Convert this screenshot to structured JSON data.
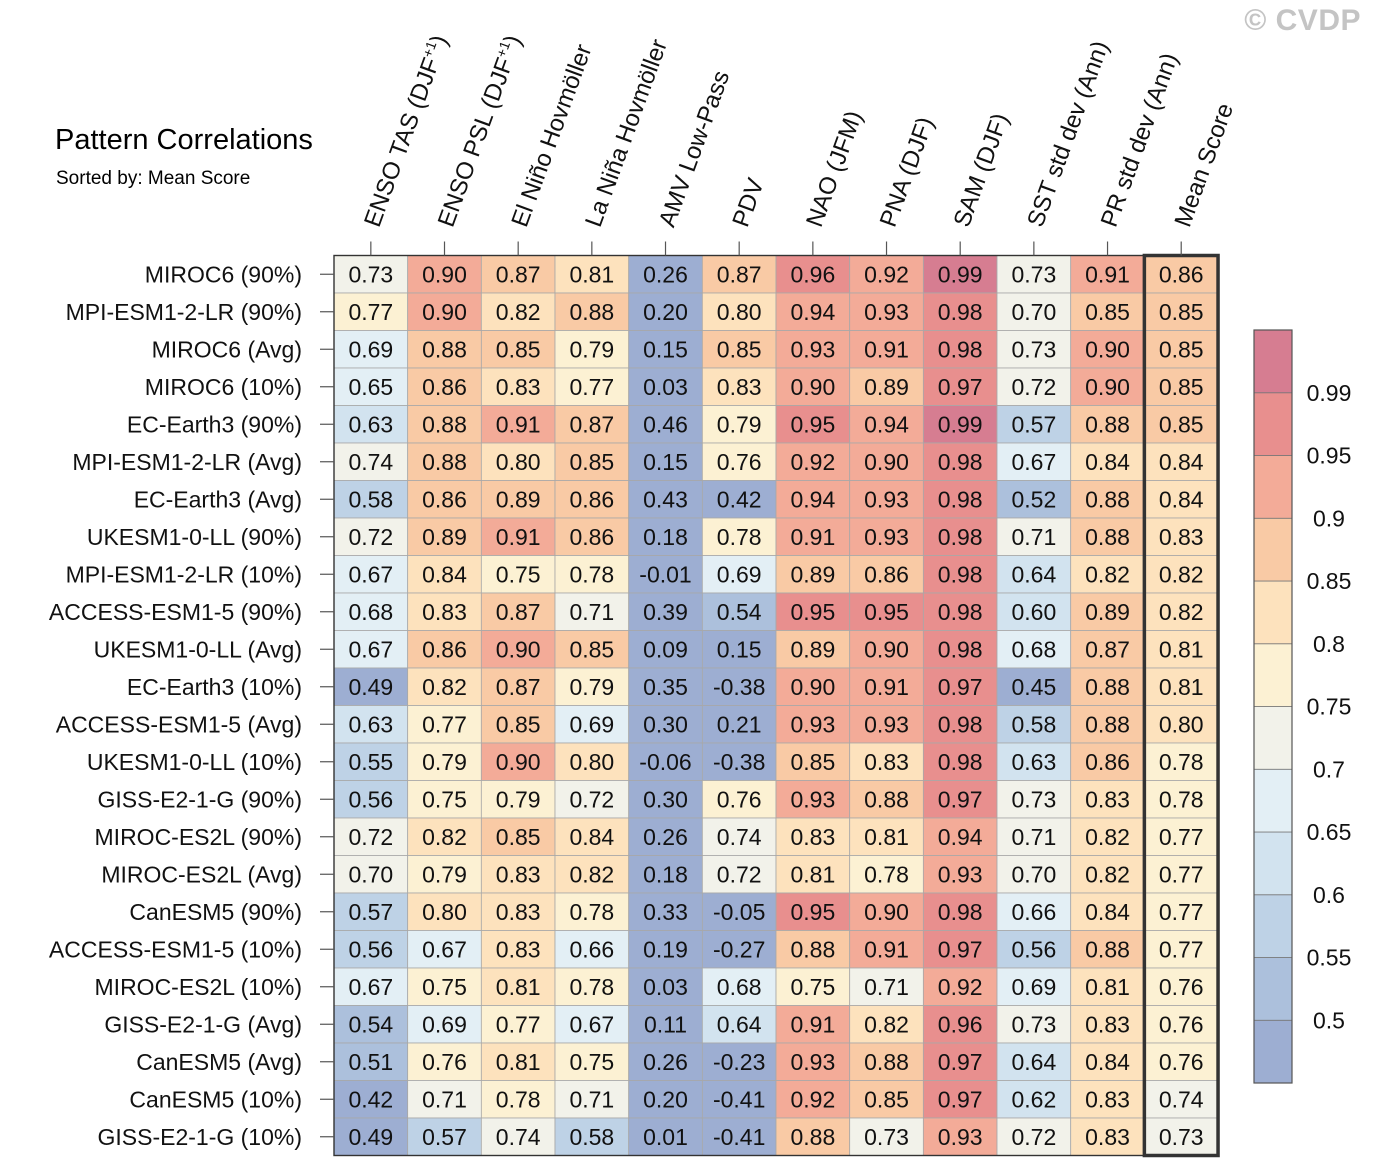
{
  "watermark": "© CVDP",
  "chart_data": {
    "type": "heatmap",
    "title": "Pattern Correlations",
    "subtitle": "Sorted by: Mean Score",
    "columns": [
      {
        "label": "ENSO TAS (DJF",
        "sup": "+1",
        "tail": ")"
      },
      {
        "label": "ENSO PSL (DJF",
        "sup": "+1",
        "tail": ")"
      },
      {
        "label": "El Niño Hovmöller"
      },
      {
        "label": "La Niña Hovmöller"
      },
      {
        "label": "AMV Low-Pass"
      },
      {
        "label": "PDV"
      },
      {
        "label": "NAO (JFM)"
      },
      {
        "label": "PNA (DJF)"
      },
      {
        "label": "SAM (DJF)"
      },
      {
        "label": "SST std dev (Ann)"
      },
      {
        "label": "PR std dev (Ann)"
      },
      {
        "label": "Mean Score"
      }
    ],
    "rows": [
      "MIROC6 (90%)",
      "MPI-ESM1-2-LR (90%)",
      "MIROC6 (Avg)",
      "MIROC6 (10%)",
      "EC-Earth3 (90%)",
      "MPI-ESM1-2-LR (Avg)",
      "EC-Earth3 (Avg)",
      "UKESM1-0-LL (90%)",
      "MPI-ESM1-2-LR (10%)",
      "ACCESS-ESM1-5 (90%)",
      "UKESM1-0-LL (Avg)",
      "EC-Earth3 (10%)",
      "ACCESS-ESM1-5 (Avg)",
      "UKESM1-0-LL (10%)",
      "GISS-E2-1-G (90%)",
      "MIROC-ES2L (90%)",
      "MIROC-ES2L (Avg)",
      "CanESM5 (90%)",
      "ACCESS-ESM1-5 (10%)",
      "MIROC-ES2L (10%)",
      "GISS-E2-1-G (Avg)",
      "CanESM5 (Avg)",
      "CanESM5 (10%)",
      "GISS-E2-1-G (10%)"
    ],
    "values": [
      [
        "0.73",
        "0.90",
        "0.87",
        "0.81",
        "0.26",
        "0.87",
        "0.96",
        "0.92",
        "0.99",
        "0.73",
        "0.91",
        "0.86"
      ],
      [
        "0.77",
        "0.90",
        "0.82",
        "0.88",
        "0.20",
        "0.80",
        "0.94",
        "0.93",
        "0.98",
        "0.70",
        "0.85",
        "0.85"
      ],
      [
        "0.69",
        "0.88",
        "0.85",
        "0.79",
        "0.15",
        "0.85",
        "0.93",
        "0.91",
        "0.98",
        "0.73",
        "0.90",
        "0.85"
      ],
      [
        "0.65",
        "0.86",
        "0.83",
        "0.77",
        "0.03",
        "0.83",
        "0.90",
        "0.89",
        "0.97",
        "0.72",
        "0.90",
        "0.85"
      ],
      [
        "0.63",
        "0.88",
        "0.91",
        "0.87",
        "0.46",
        "0.79",
        "0.95",
        "0.94",
        "0.99",
        "0.57",
        "0.88",
        "0.85"
      ],
      [
        "0.74",
        "0.88",
        "0.80",
        "0.85",
        "0.15",
        "0.76",
        "0.92",
        "0.90",
        "0.98",
        "0.67",
        "0.84",
        "0.84"
      ],
      [
        "0.58",
        "0.86",
        "0.89",
        "0.86",
        "0.43",
        "0.42",
        "0.94",
        "0.93",
        "0.98",
        "0.52",
        "0.88",
        "0.84"
      ],
      [
        "0.72",
        "0.89",
        "0.91",
        "0.86",
        "0.18",
        "0.78",
        "0.91",
        "0.93",
        "0.98",
        "0.71",
        "0.88",
        "0.83"
      ],
      [
        "0.67",
        "0.84",
        "0.75",
        "0.78",
        "-0.01",
        "0.69",
        "0.89",
        "0.86",
        "0.98",
        "0.64",
        "0.82",
        "0.82"
      ],
      [
        "0.68",
        "0.83",
        "0.87",
        "0.71",
        "0.39",
        "0.54",
        "0.95",
        "0.95",
        "0.98",
        "0.60",
        "0.89",
        "0.82"
      ],
      [
        "0.67",
        "0.86",
        "0.90",
        "0.85",
        "0.09",
        "0.15",
        "0.89",
        "0.90",
        "0.98",
        "0.68",
        "0.87",
        "0.81"
      ],
      [
        "0.49",
        "0.82",
        "0.87",
        "0.79",
        "0.35",
        "-0.38",
        "0.90",
        "0.91",
        "0.97",
        "0.45",
        "0.88",
        "0.81"
      ],
      [
        "0.63",
        "0.77",
        "0.85",
        "0.69",
        "0.30",
        "0.21",
        "0.93",
        "0.93",
        "0.98",
        "0.58",
        "0.88",
        "0.80"
      ],
      [
        "0.55",
        "0.79",
        "0.90",
        "0.80",
        "-0.06",
        "-0.38",
        "0.85",
        "0.83",
        "0.98",
        "0.63",
        "0.86",
        "0.78"
      ],
      [
        "0.56",
        "0.75",
        "0.79",
        "0.72",
        "0.30",
        "0.76",
        "0.93",
        "0.88",
        "0.97",
        "0.73",
        "0.83",
        "0.78"
      ],
      [
        "0.72",
        "0.82",
        "0.85",
        "0.84",
        "0.26",
        "0.74",
        "0.83",
        "0.81",
        "0.94",
        "0.71",
        "0.82",
        "0.77"
      ],
      [
        "0.70",
        "0.79",
        "0.83",
        "0.82",
        "0.18",
        "0.72",
        "0.81",
        "0.78",
        "0.93",
        "0.70",
        "0.82",
        "0.77"
      ],
      [
        "0.57",
        "0.80",
        "0.83",
        "0.78",
        "0.33",
        "-0.05",
        "0.95",
        "0.90",
        "0.98",
        "0.66",
        "0.84",
        "0.77"
      ],
      [
        "0.56",
        "0.67",
        "0.83",
        "0.66",
        "0.19",
        "-0.27",
        "0.88",
        "0.91",
        "0.97",
        "0.56",
        "0.88",
        "0.77"
      ],
      [
        "0.67",
        "0.75",
        "0.81",
        "0.78",
        "0.03",
        "0.68",
        "0.75",
        "0.71",
        "0.92",
        "0.69",
        "0.81",
        "0.76"
      ],
      [
        "0.54",
        "0.69",
        "0.77",
        "0.67",
        "0.11",
        "0.64",
        "0.91",
        "0.82",
        "0.96",
        "0.73",
        "0.83",
        "0.76"
      ],
      [
        "0.51",
        "0.76",
        "0.81",
        "0.75",
        "0.26",
        "-0.23",
        "0.93",
        "0.88",
        "0.97",
        "0.64",
        "0.84",
        "0.76"
      ],
      [
        "0.42",
        "0.71",
        "0.78",
        "0.71",
        "0.20",
        "-0.41",
        "0.92",
        "0.85",
        "0.97",
        "0.62",
        "0.83",
        "0.74"
      ],
      [
        "0.49",
        "0.57",
        "0.74",
        "0.58",
        "0.01",
        "-0.41",
        "0.88",
        "0.73",
        "0.93",
        "0.72",
        "0.83",
        "0.73"
      ]
    ],
    "highlight_column": "Mean Score",
    "colorbar": {
      "tick_labels": [
        "0.5",
        "0.55",
        "0.6",
        "0.65",
        "0.7",
        "0.75",
        "0.8",
        "0.85",
        "0.9",
        "0.95",
        "0.99"
      ],
      "bins": [
        {
          "max": 0.5,
          "color": "#9daed2"
        },
        {
          "max": 0.55,
          "color": "#acc0dc"
        },
        {
          "max": 0.6,
          "color": "#bed2e6"
        },
        {
          "max": 0.65,
          "color": "#d2e3ef"
        },
        {
          "max": 0.7,
          "color": "#e3eff5"
        },
        {
          "max": 0.75,
          "color": "#f2f2ea"
        },
        {
          "max": 0.8,
          "color": "#fcf1d3"
        },
        {
          "max": 0.85,
          "color": "#fde2bd"
        },
        {
          "max": 0.9,
          "color": "#f9caa5"
        },
        {
          "max": 0.95,
          "color": "#f3ab98"
        },
        {
          "max": 0.99,
          "color": "#e88f8e"
        },
        {
          "max": 1.01,
          "color": "#d67d91"
        }
      ]
    }
  }
}
